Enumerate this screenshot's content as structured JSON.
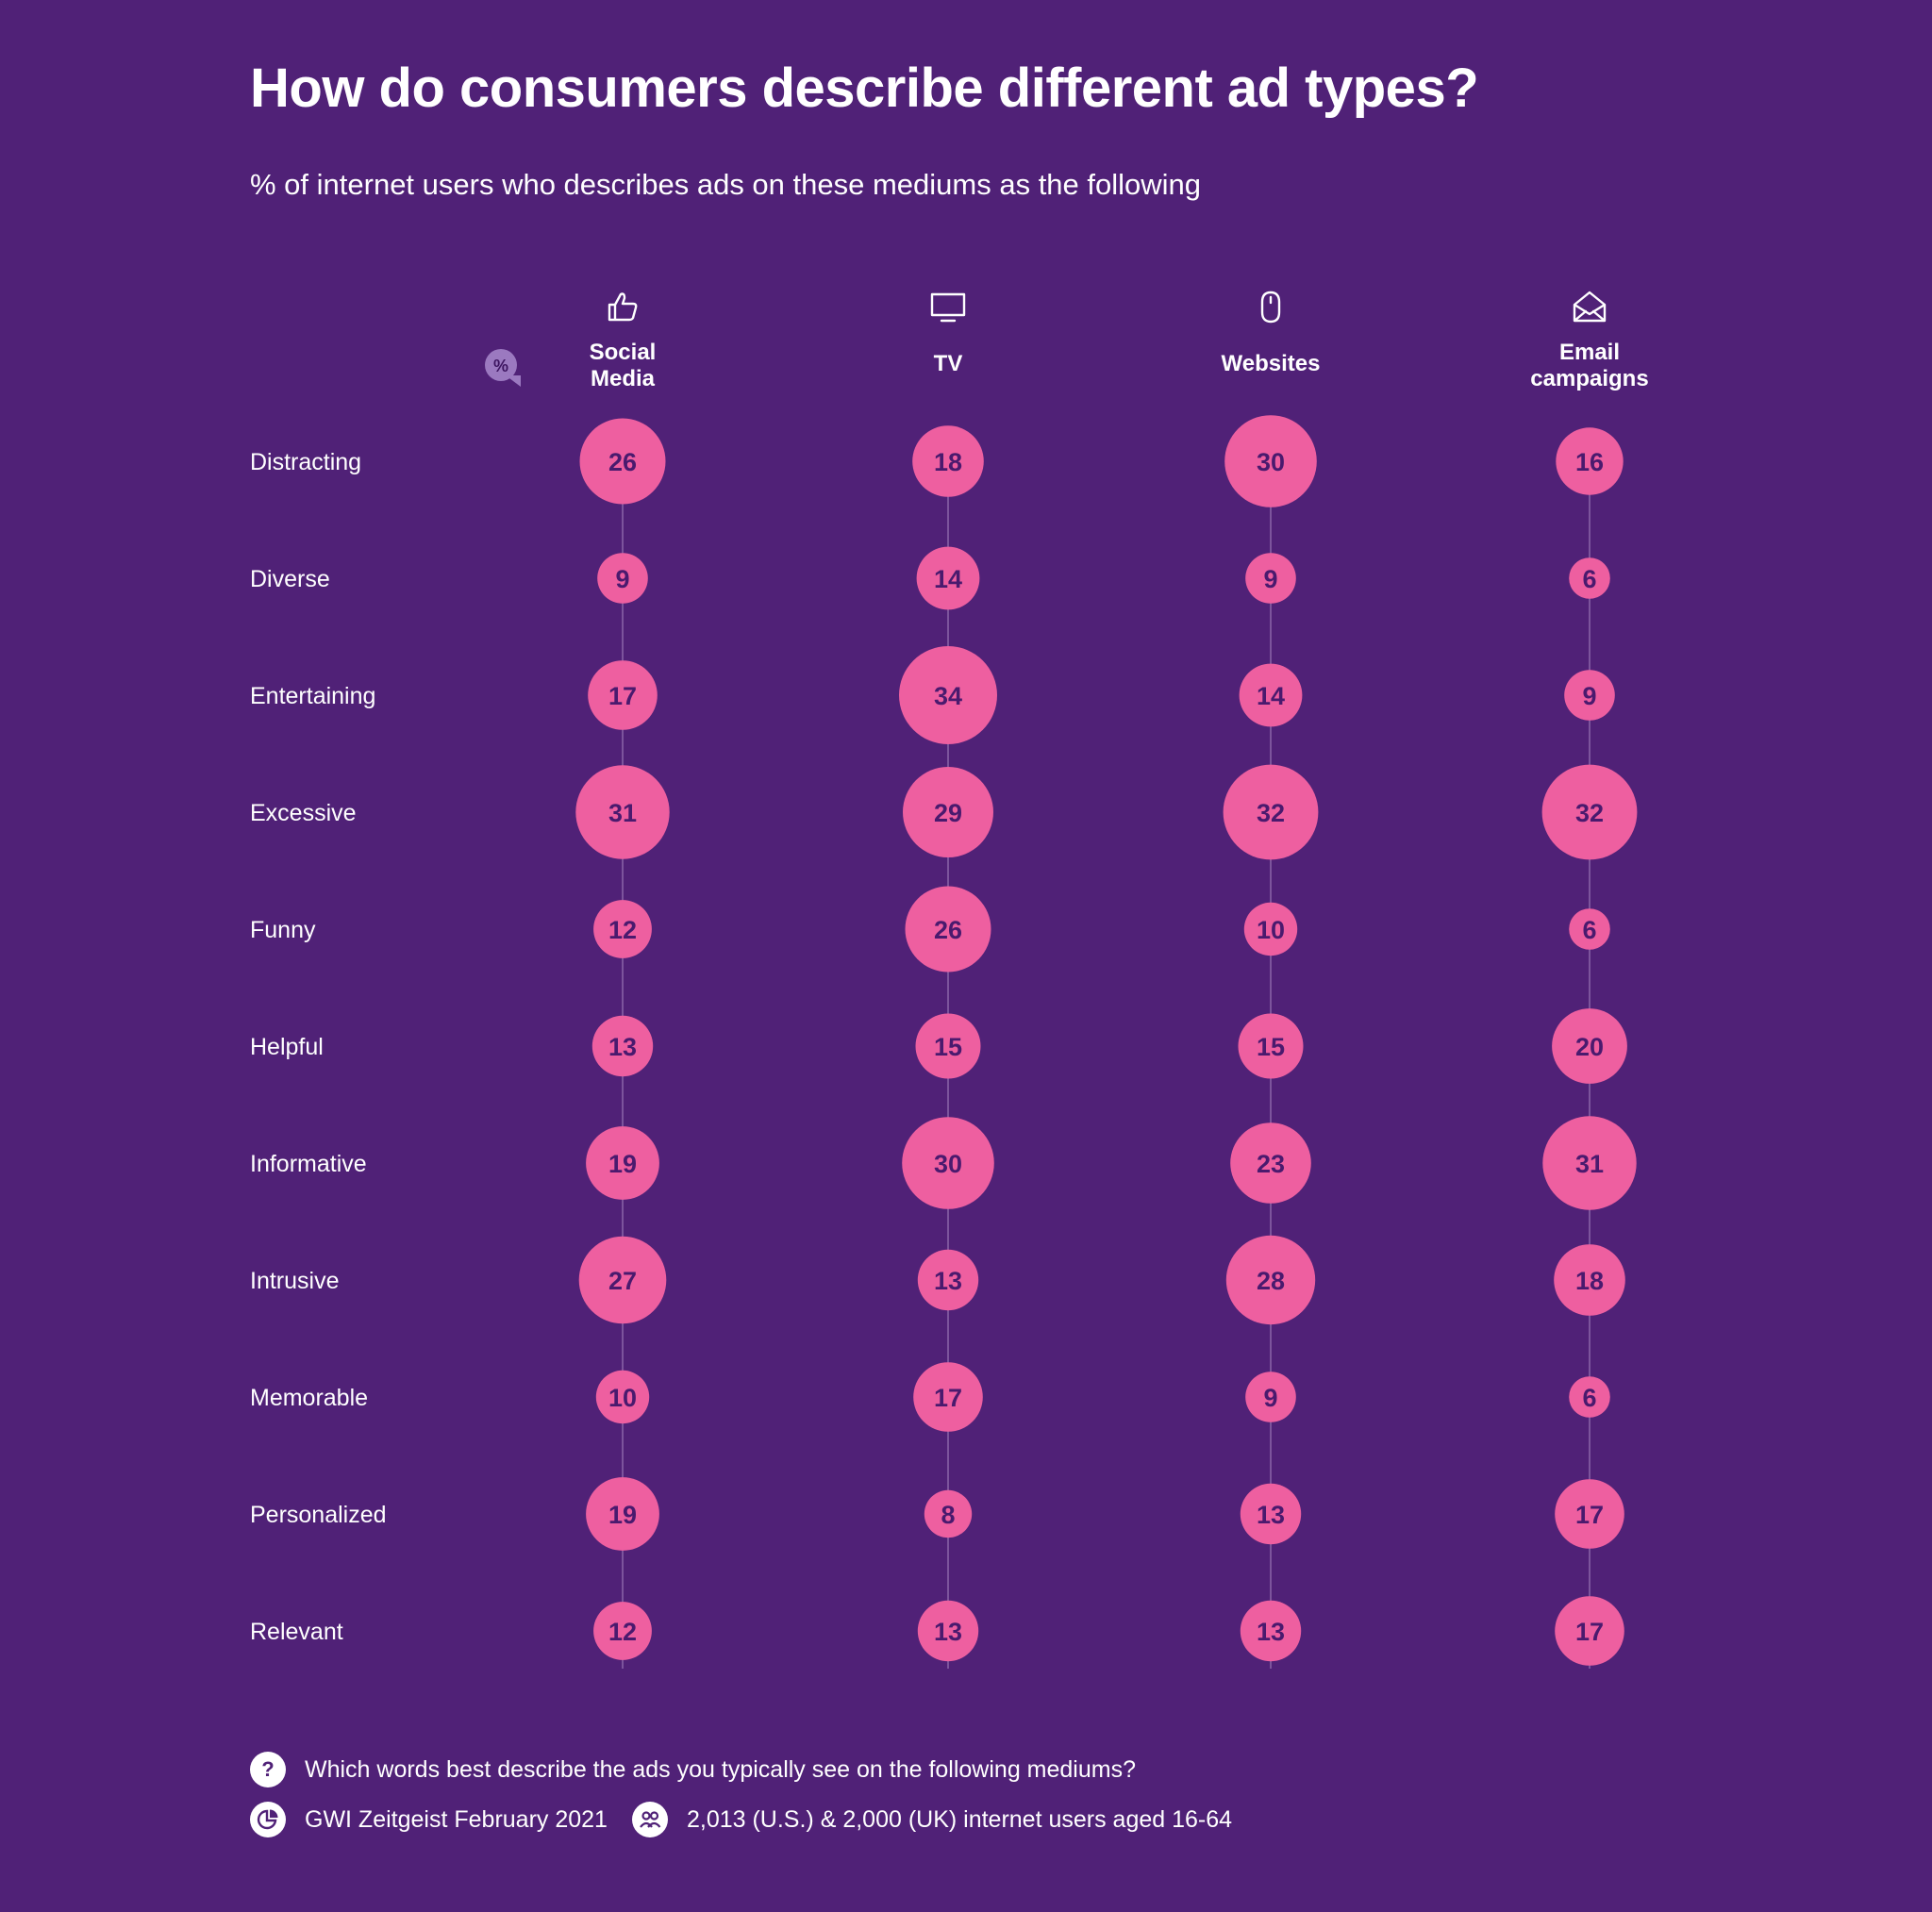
{
  "header": {
    "title": "How do consumers describe different ad types?",
    "subtitle": "% of internet users who describes ads on these mediums as the following"
  },
  "chart_data": {
    "type": "bubble",
    "unit": "%",
    "unit_badge": "%",
    "categories": [
      "Distracting",
      "Diverse",
      "Entertaining",
      "Excessive",
      "Funny",
      "Helpful",
      "Informative",
      "Intrusive",
      "Memorable",
      "Personalized",
      "Relevant"
    ],
    "series": [
      {
        "name": "Social Media",
        "label_lines": [
          "Social",
          "Media"
        ],
        "icon": "thumbs-up-icon",
        "values": [
          26,
          9,
          17,
          31,
          12,
          13,
          19,
          27,
          10,
          19,
          12
        ]
      },
      {
        "name": "TV",
        "label_lines": [
          "TV"
        ],
        "icon": "tv-icon",
        "values": [
          18,
          14,
          34,
          29,
          26,
          15,
          30,
          13,
          17,
          8,
          13
        ]
      },
      {
        "name": "Websites",
        "label_lines": [
          "Websites"
        ],
        "icon": "mouse-icon",
        "values": [
          30,
          9,
          14,
          32,
          10,
          15,
          23,
          28,
          9,
          13,
          13
        ]
      },
      {
        "name": "Email campaigns",
        "label_lines": [
          "Email",
          "campaigns"
        ],
        "icon": "envelope-icon",
        "values": [
          16,
          6,
          9,
          32,
          6,
          20,
          31,
          18,
          6,
          17,
          17
        ]
      }
    ],
    "colors": {
      "background": "#502177",
      "bubble": "#ee5fa0",
      "bubble_text": "#4a1a6e",
      "connector": "#8a65a8",
      "badge": "#9b79c0"
    }
  },
  "footer": {
    "question_icon": "?",
    "question": "Which words best describe the ads you typically see on the following mediums?",
    "source": "GWI Zeitgeist February 2021",
    "sample": "2,013 (U.S.) & 2,000 (UK) internet users aged 16-64"
  }
}
